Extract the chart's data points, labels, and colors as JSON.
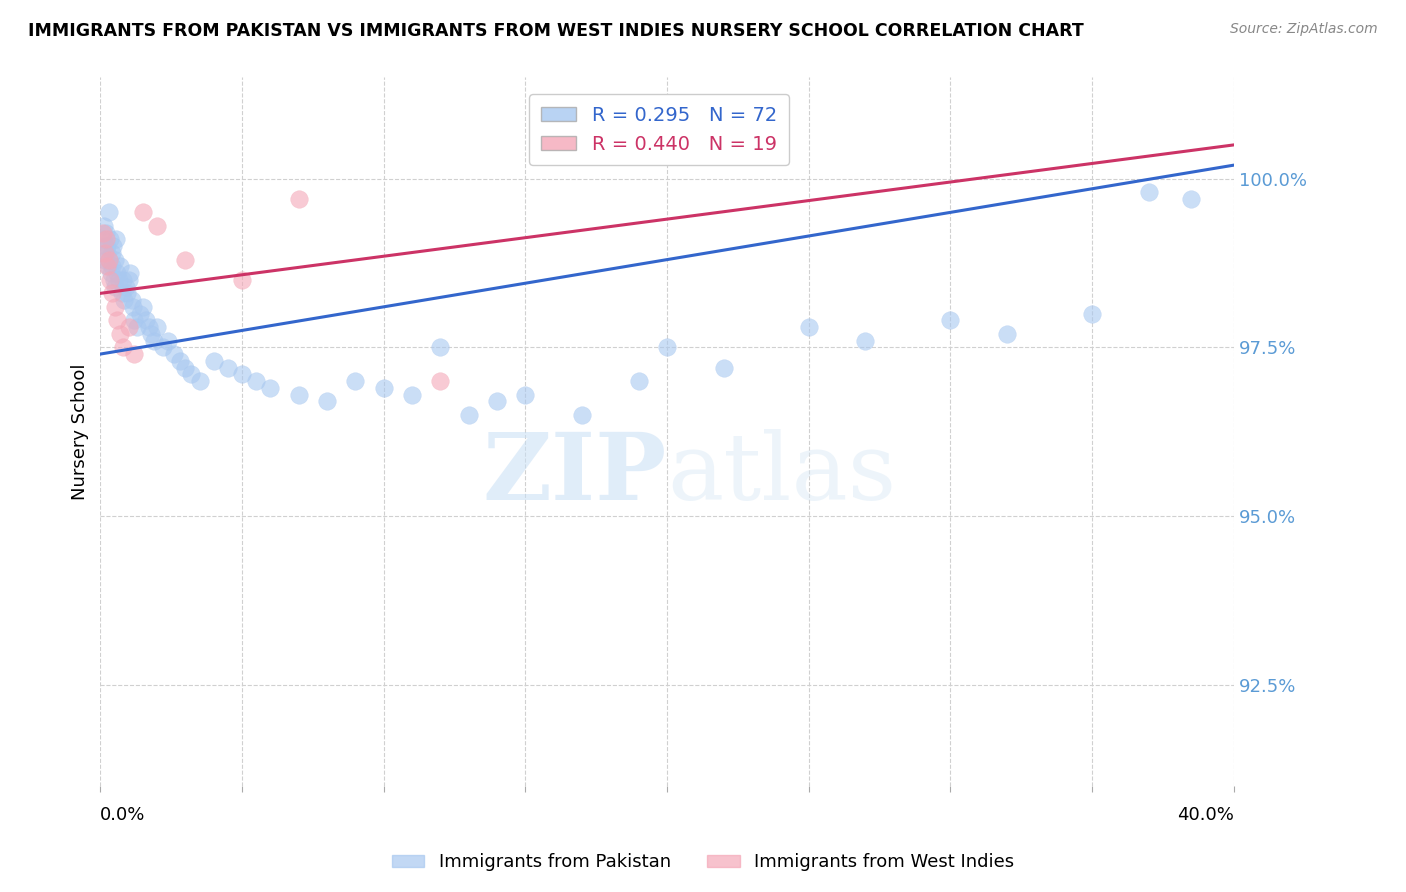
{
  "title": "IMMIGRANTS FROM PAKISTAN VS IMMIGRANTS FROM WEST INDIES NURSERY SCHOOL CORRELATION CHART",
  "source": "Source: ZipAtlas.com",
  "ylabel": "Nursery School",
  "x_min": 0.0,
  "x_max": 40.0,
  "y_min": 91.0,
  "y_max": 101.5,
  "blue_R": 0.295,
  "blue_N": 72,
  "pink_R": 0.44,
  "pink_N": 19,
  "blue_color": "#a8c8f0",
  "pink_color": "#f4a8b8",
  "blue_line_color": "#3366cc",
  "pink_line_color": "#cc3366",
  "y_tick_positions": [
    92.5,
    95.0,
    97.5,
    100.0
  ],
  "y_tick_labels": [
    "92.5%",
    "95.0%",
    "97.5%",
    "100.0%"
  ],
  "blue_line_x": [
    0.0,
    40.0
  ],
  "blue_line_y": [
    97.4,
    100.2
  ],
  "pink_line_x": [
    0.0,
    40.0
  ],
  "pink_line_y": [
    98.3,
    100.5
  ],
  "blue_scatter_x": [
    0.1,
    0.12,
    0.15,
    0.18,
    0.2,
    0.22,
    0.25,
    0.28,
    0.3,
    0.32,
    0.35,
    0.38,
    0.4,
    0.42,
    0.45,
    0.48,
    0.5,
    0.52,
    0.55,
    0.6,
    0.65,
    0.7,
    0.75,
    0.8,
    0.85,
    0.9,
    0.95,
    1.0,
    1.05,
    1.1,
    1.15,
    1.2,
    1.3,
    1.4,
    1.5,
    1.6,
    1.7,
    1.8,
    1.9,
    2.0,
    2.2,
    2.4,
    2.6,
    2.8,
    3.0,
    3.2,
    3.5,
    4.0,
    4.5,
    5.0,
    5.5,
    6.0,
    7.0,
    8.0,
    9.0,
    10.0,
    11.0,
    12.0,
    13.0,
    14.0,
    15.0,
    17.0,
    19.0,
    20.0,
    22.0,
    25.0,
    27.0,
    30.0,
    32.0,
    35.0,
    37.0,
    38.5
  ],
  "blue_scatter_y": [
    99.1,
    99.3,
    99.0,
    98.8,
    99.2,
    98.9,
    99.0,
    98.7,
    98.8,
    99.5,
    99.1,
    98.6,
    98.9,
    98.7,
    99.0,
    98.5,
    98.8,
    98.4,
    99.1,
    98.6,
    98.5,
    98.7,
    98.3,
    98.5,
    98.2,
    98.4,
    98.3,
    98.5,
    98.6,
    98.2,
    98.1,
    97.9,
    97.8,
    98.0,
    98.1,
    97.9,
    97.8,
    97.7,
    97.6,
    97.8,
    97.5,
    97.6,
    97.4,
    97.3,
    97.2,
    97.1,
    97.0,
    97.3,
    97.2,
    97.1,
    97.0,
    96.9,
    96.8,
    96.7,
    97.0,
    96.9,
    96.8,
    97.5,
    96.5,
    96.7,
    96.8,
    96.5,
    97.0,
    97.5,
    97.2,
    97.8,
    97.6,
    97.9,
    97.7,
    98.0,
    99.8,
    99.7
  ],
  "pink_scatter_x": [
    0.1,
    0.15,
    0.2,
    0.25,
    0.3,
    0.35,
    0.4,
    0.5,
    0.6,
    0.7,
    0.8,
    1.0,
    1.2,
    1.5,
    2.0,
    3.0,
    5.0,
    7.0,
    12.0
  ],
  "pink_scatter_y": [
    99.2,
    98.9,
    99.1,
    98.7,
    98.8,
    98.5,
    98.3,
    98.1,
    97.9,
    97.7,
    97.5,
    97.8,
    97.4,
    99.5,
    99.3,
    98.8,
    98.5,
    99.7,
    97.0
  ],
  "watermark_zip": "ZIP",
  "watermark_atlas": "atlas",
  "background_color": "#ffffff",
  "grid_color": "#d0d0d0",
  "tick_color": "#5b9bd5"
}
